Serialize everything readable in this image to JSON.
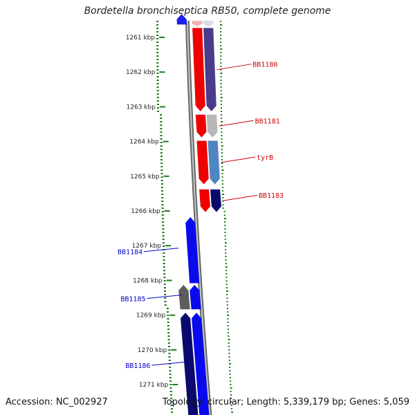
{
  "title": "Bordetella bronchiseptica RB50, complete genome",
  "footer": {
    "accession": "Accession: NC_002927",
    "summary": "Topology: circular; Length: 5,339,179 bp; Genes: 5,059"
  },
  "scale_labels": [
    "1261 kbp",
    "1262 kbp",
    "1263 kbp",
    "1264 kbp",
    "1265 kbp",
    "1266 kbp",
    "1267 kbp",
    "1268 kbp",
    "1269 kbp",
    "1270 kbp",
    "1271 kbp"
  ],
  "genes": [
    {
      "id": "g-top-blue",
      "strand": "reverse",
      "start": 1260.35,
      "end": 1260.65,
      "color": "#1e1ef0",
      "label": ""
    },
    {
      "id": "g-top-pink",
      "strand": "forward",
      "start": 1260.55,
      "end": 1260.7,
      "color": "#f4b0b0",
      "label": ""
    },
    {
      "id": "g-top-light",
      "strand": "forward-inner",
      "start": 1260.55,
      "end": 1260.7,
      "color": "#dcdcec",
      "label": ""
    },
    {
      "id": "bb1180a",
      "strand": "forward",
      "start": 1260.75,
      "end": 1263.15,
      "color": "#f00000",
      "label": ""
    },
    {
      "id": "bb1180",
      "strand": "forward-inner",
      "start": 1260.75,
      "end": 1263.15,
      "color": "#4a3c8c",
      "label": "BB1180"
    },
    {
      "id": "bb1181a",
      "strand": "forward",
      "start": 1263.25,
      "end": 1263.9,
      "color": "#f00000",
      "label": ""
    },
    {
      "id": "bb1181",
      "strand": "forward-inner",
      "start": 1263.25,
      "end": 1263.9,
      "color": "#b8b8b8",
      "label": "BB1181"
    },
    {
      "id": "tyrBa",
      "strand": "forward",
      "start": 1264.0,
      "end": 1265.25,
      "color": "#f00000",
      "label": ""
    },
    {
      "id": "tyrB",
      "strand": "forward-inner",
      "start": 1264.0,
      "end": 1265.25,
      "color": "#4f86c2",
      "label": "tyrB"
    },
    {
      "id": "bb1183a",
      "strand": "forward",
      "start": 1265.4,
      "end": 1266.05,
      "color": "#f00000",
      "label": ""
    },
    {
      "id": "bb1183",
      "strand": "forward-inner",
      "start": 1265.4,
      "end": 1266.05,
      "color": "#0a0a6e",
      "label": "BB1183"
    },
    {
      "id": "bb1184",
      "strand": "reverse",
      "start": 1266.2,
      "end": 1268.1,
      "color": "#0a0af0",
      "label": "BB1184"
    },
    {
      "id": "bb1185a",
      "strand": "reverse-outer",
      "start": 1268.15,
      "end": 1268.85,
      "color": "#5c5c5c",
      "label": ""
    },
    {
      "id": "bb1185",
      "strand": "reverse",
      "start": 1268.15,
      "end": 1268.85,
      "color": "#0a0af0",
      "label": "BB1185"
    },
    {
      "id": "bb1186a",
      "strand": "reverse-outer",
      "start": 1268.95,
      "end": 1271.9,
      "color": "#0a0a70",
      "label": ""
    },
    {
      "id": "bb1186",
      "strand": "reverse",
      "start": 1268.95,
      "end": 1271.9,
      "color": "#0a0af0",
      "label": "BB1186"
    }
  ],
  "colors": {
    "backbone": "#8a8a8a",
    "gc_dots": "#1a7a1a",
    "forward_label": "#d00000",
    "reverse_label": "#0000c8"
  }
}
